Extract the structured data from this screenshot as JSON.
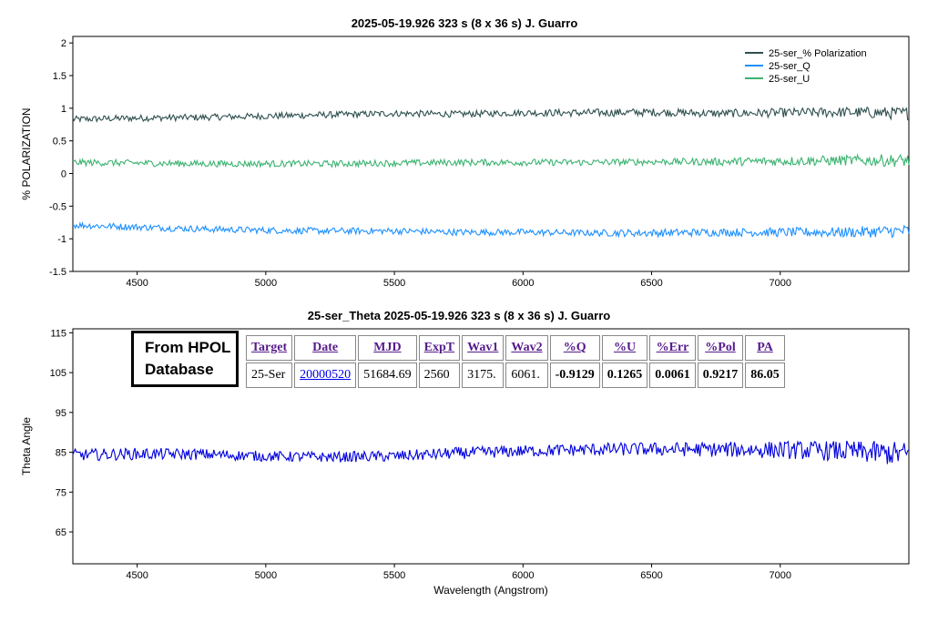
{
  "panels": [
    {
      "title": "2025-05-19.926   323 s (8 x 36 s)   J. Guarro",
      "ylabel": "% POLARIZATION",
      "xlabel": "",
      "yticks": [
        "2",
        "1.5",
        "1",
        "0.5",
        "0",
        "-0.5",
        "-1",
        "-1.5"
      ],
      "xticks": [
        "4500",
        "5000",
        "5500",
        "6000",
        "6500",
        "7000"
      ]
    },
    {
      "title": "25-ser_Theta  2025-05-19.926  323 s (8 x 36 s)  J. Guarro",
      "ylabel": "Theta  Angle",
      "xlabel": "Wavelength (Angstrom)",
      "yticks": [
        "115",
        "105",
        "95",
        "85",
        "75",
        "65"
      ],
      "xticks": [
        "4500",
        "5000",
        "5500",
        "6000",
        "6500",
        "7000"
      ]
    }
  ],
  "hpol": {
    "label_line1": "From HPOL",
    "label_line2": "Database",
    "headers": [
      "Target",
      "Date",
      "MJD",
      "ExpT",
      "Wav1",
      "Wav2",
      "%Q",
      "%U",
      "%Err",
      "%Pol",
      "PA"
    ],
    "row": [
      "25-Ser",
      "20000520",
      "51684.69",
      "2560",
      "3175.",
      "6061.",
      "-0.9129",
      "0.1265",
      "0.0061",
      "0.9217",
      "86.05"
    ]
  },
  "chart_data": [
    {
      "type": "line",
      "title": "2025-05-19.926   323 s (8 x 36 s)   J. Guarro",
      "xlabel": "",
      "ylabel": "% POLARIZATION",
      "xlim": [
        4250,
        7500
      ],
      "ylim": [
        -1.5,
        2.1
      ],
      "yticks": [
        -1.5,
        -1,
        -0.5,
        0,
        0.5,
        1,
        1.5,
        2
      ],
      "xticks": [
        4500,
        5000,
        5500,
        6000,
        6500,
        7000
      ],
      "grid": false,
      "legend": "top-right",
      "x": [
        4250,
        4500,
        4750,
        5000,
        5250,
        5500,
        5750,
        6000,
        6250,
        6500,
        6750,
        7000,
        7250,
        7500
      ],
      "series": [
        {
          "name": "25-ser_% Polarization",
          "color": "#2f4f4f",
          "values": [
            0.83,
            0.85,
            0.86,
            0.88,
            0.9,
            0.92,
            0.91,
            0.93,
            0.93,
            0.94,
            0.92,
            0.93,
            0.94,
            0.92
          ],
          "noise": [
            0.05,
            0.05,
            0.05,
            0.05,
            0.05,
            0.05,
            0.05,
            0.05,
            0.06,
            0.06,
            0.06,
            0.07,
            0.08,
            0.1
          ]
        },
        {
          "name": "25-ser_Q",
          "color": "#1e90ff",
          "values": [
            -0.79,
            -0.82,
            -0.85,
            -0.87,
            -0.88,
            -0.88,
            -0.9,
            -0.9,
            -0.91,
            -0.91,
            -0.9,
            -0.9,
            -0.9,
            -0.88
          ],
          "noise": [
            0.05,
            0.05,
            0.05,
            0.05,
            0.05,
            0.05,
            0.05,
            0.05,
            0.05,
            0.06,
            0.06,
            0.07,
            0.08,
            0.1
          ]
        },
        {
          "name": "25-ser_U",
          "color": "#3cb371",
          "values": [
            0.17,
            0.16,
            0.15,
            0.15,
            0.15,
            0.16,
            0.17,
            0.17,
            0.17,
            0.18,
            0.18,
            0.19,
            0.2,
            0.2
          ],
          "noise": [
            0.05,
            0.05,
            0.05,
            0.05,
            0.05,
            0.05,
            0.05,
            0.05,
            0.05,
            0.05,
            0.06,
            0.07,
            0.08,
            0.1
          ]
        }
      ]
    },
    {
      "type": "line",
      "title": "25-ser_Theta  2025-05-19.926  323 s (8 x 36 s)  J. Guarro",
      "xlabel": "Wavelength (Angstrom)",
      "ylabel": "Theta  Angle",
      "xlim": [
        4250,
        7500
      ],
      "ylim": [
        57,
        116
      ],
      "yticks": [
        65,
        75,
        85,
        95,
        105,
        115
      ],
      "xticks": [
        4500,
        5000,
        5500,
        6000,
        6500,
        7000
      ],
      "grid": false,
      "x": [
        4250,
        4500,
        4750,
        5000,
        5250,
        5500,
        5750,
        6000,
        6250,
        6500,
        6750,
        7000,
        7250,
        7500
      ],
      "series": [
        {
          "name": "",
          "color": "#0000dd",
          "values": [
            84.3,
            84.6,
            84.5,
            84.0,
            83.8,
            84.0,
            84.8,
            85.3,
            85.7,
            85.8,
            85.7,
            85.6,
            85.3,
            84.5
          ],
          "noise": [
            1.5,
            1.5,
            1.4,
            1.3,
            1.3,
            1.4,
            1.5,
            1.5,
            1.6,
            1.7,
            1.9,
            2.2,
            2.6,
            3.2
          ]
        }
      ]
    }
  ]
}
